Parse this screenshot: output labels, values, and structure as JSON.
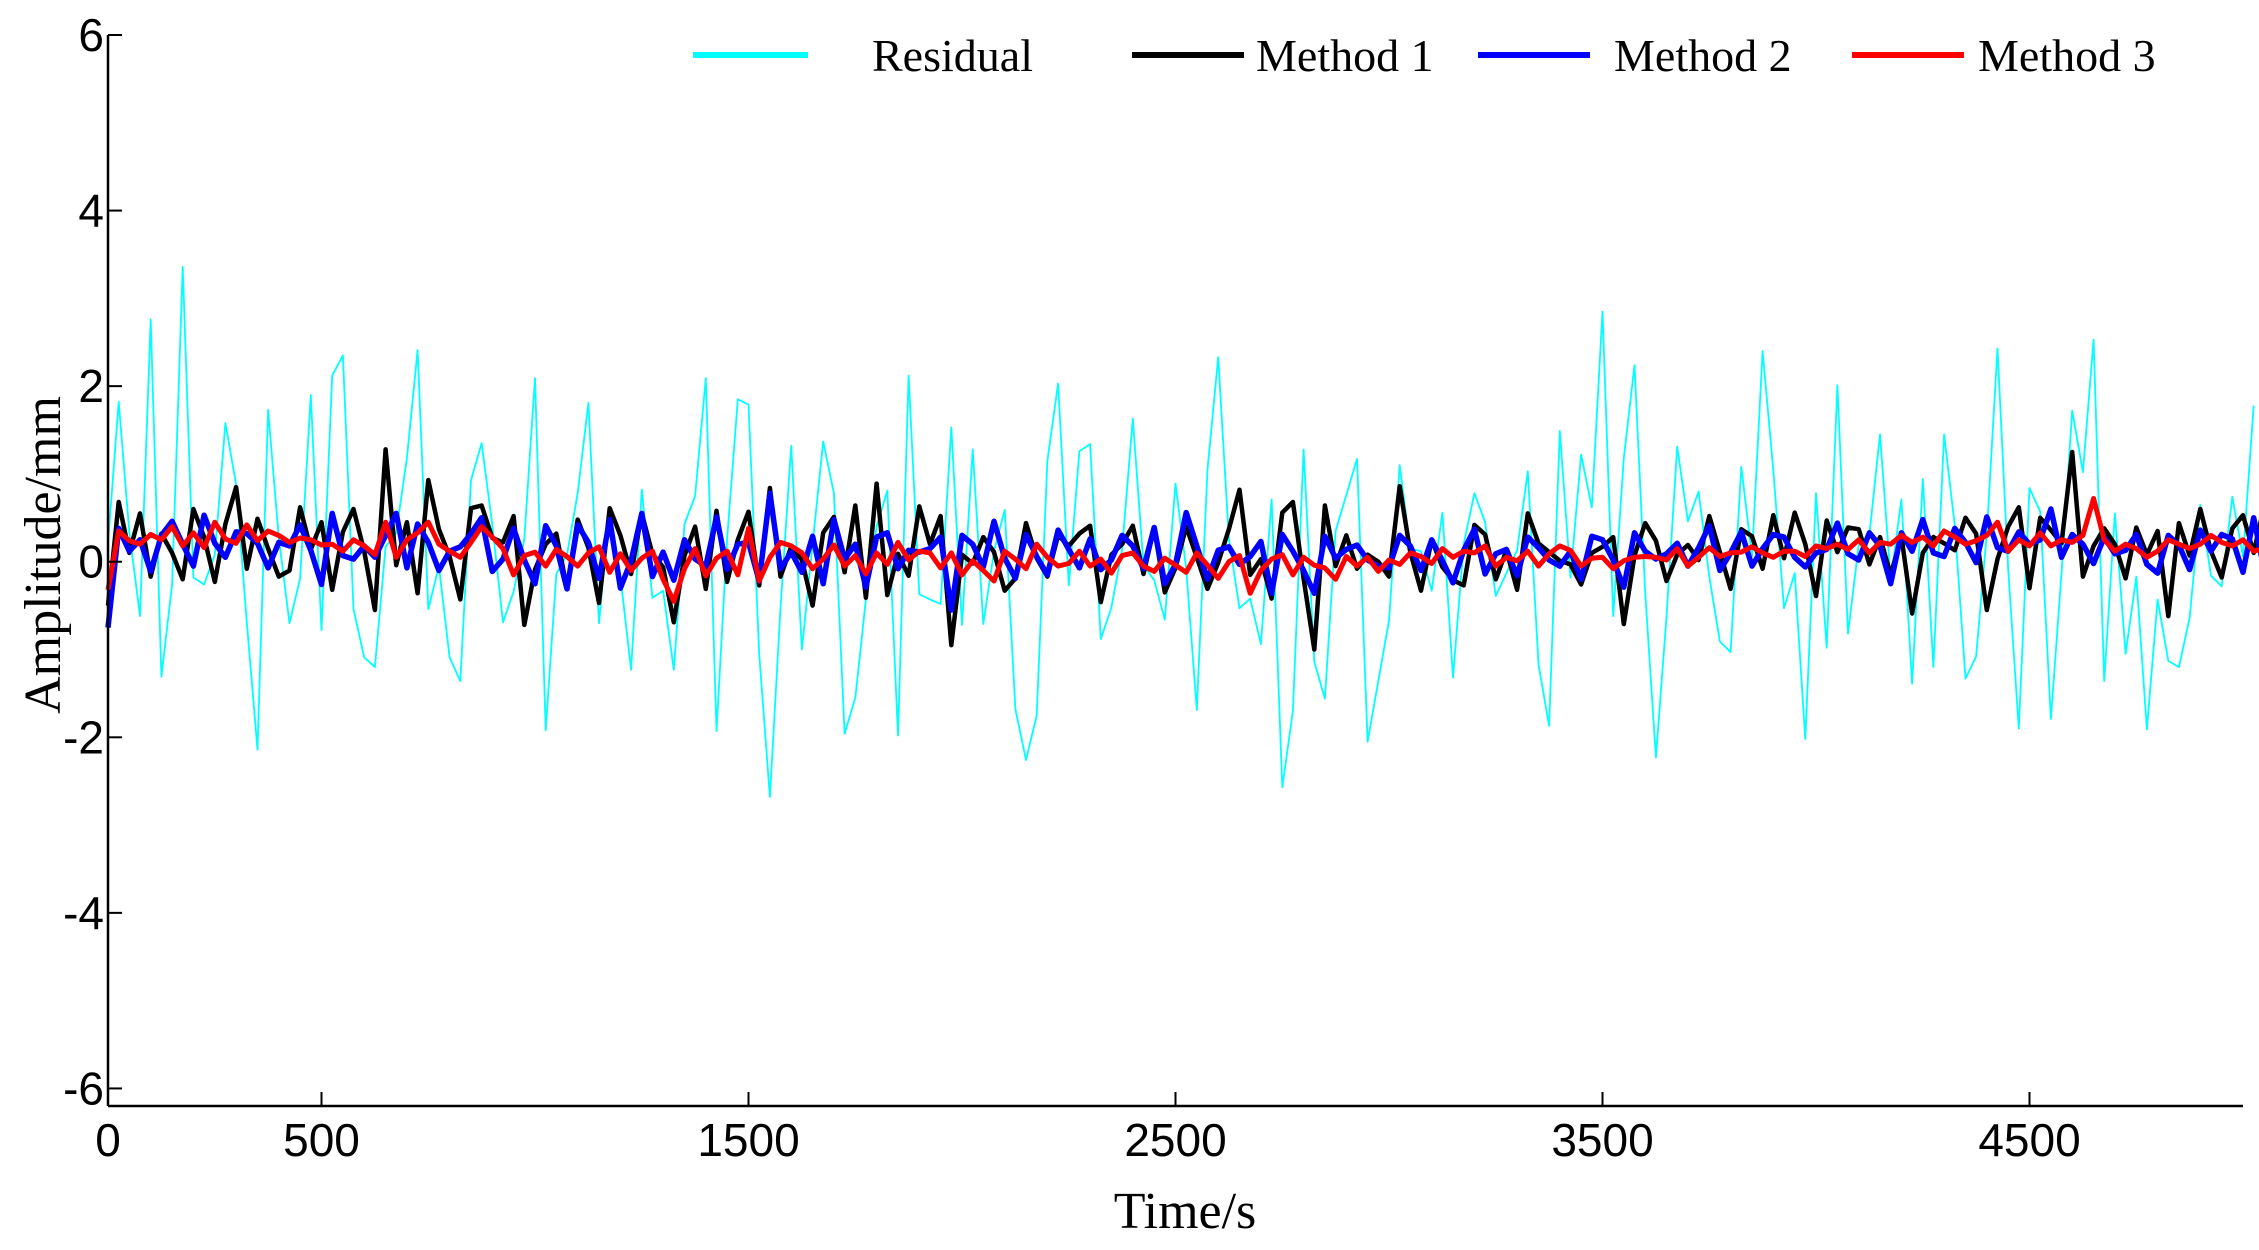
{
  "chart_data": {
    "type": "line",
    "title": "",
    "xlabel": "Time/s",
    "ylabel": "Amplitude/mm",
    "xlim": [
      0,
      5000
    ],
    "ylim": [
      -6.2,
      6
    ],
    "x_ticks": [
      0,
      500,
      1500,
      2500,
      3500,
      4500
    ],
    "y_ticks": [
      6,
      4,
      2,
      0,
      -2,
      -4,
      -6
    ],
    "grid": false,
    "legend_position": "top",
    "series": [
      {
        "name": "Residual",
        "color": "#00ffff",
        "x_step": 25,
        "values": [
          0.21,
          1.82,
          0.34,
          -0.62,
          2.76,
          -1.31,
          -0.26,
          3.36,
          -0.18,
          -0.26,
          0.08,
          1.58,
          0.88,
          -0.69,
          -2.14,
          1.73,
          0.27,
          -0.7,
          -0.19,
          1.9,
          -0.78,
          2.12,
          2.35,
          -0.54,
          -1.09,
          -1.2,
          0.17,
          0.33,
          1.18,
          2.41,
          -0.54,
          -0.05,
          -1.09,
          -1.36,
          0.93,
          1.35,
          0.42,
          -0.69,
          -0.34,
          0.26,
          2.09,
          -1.92,
          -0.14,
          0.08,
          0.78,
          1.81,
          -0.7,
          0.62,
          -0.17,
          -1.23,
          0.82,
          -0.41,
          -0.33,
          -1.23,
          0.43,
          0.75,
          2.09,
          -1.93,
          0.26,
          1.85,
          1.79,
          -1.05,
          -2.68,
          -0.53,
          1.32,
          -1.0,
          0.2,
          1.37,
          0.78,
          -1.96,
          -1.55,
          -0.43,
          0.4,
          0.81,
          -1.98,
          2.12,
          -0.37,
          -0.43,
          -0.48,
          1.53,
          -0.72,
          1.28,
          -0.71,
          0.12,
          0.59,
          -1.68,
          -2.26,
          -1.75,
          1.15,
          2.03,
          -0.27,
          1.26,
          1.34,
          -0.88,
          -0.52,
          0.14,
          1.63,
          -0.04,
          -0.21,
          -0.66,
          0.89,
          -0.08,
          -1.69,
          1.05,
          2.33,
          0.26,
          -0.53,
          -0.42,
          -0.94,
          0.71,
          -2.57,
          -1.7,
          1.28,
          -1.14,
          -1.56,
          0.35,
          0.76,
          1.17,
          -2.05,
          -1.36,
          -0.67,
          1.1,
          0.15,
          0.12,
          -0.33,
          0.56,
          -1.32,
          0.2,
          0.78,
          0.45,
          -0.39,
          -0.13,
          0.13,
          1.03,
          -1.17,
          -1.87,
          1.49,
          -0.18,
          1.22,
          0.62,
          2.85,
          -0.62,
          1.18,
          2.24,
          -0.35,
          -2.23,
          -0.63,
          1.31,
          0.46,
          0.8,
          -0.17,
          -0.91,
          -1.03,
          1.08,
          0.06,
          2.4,
          1.04,
          -0.53,
          -0.13,
          -2.02,
          0.78,
          -0.98,
          2.01,
          -0.82,
          0.19,
          0.31,
          1.45,
          -0.21,
          0.71,
          -1.39,
          0.94,
          -1.2,
          1.45,
          0.41,
          -1.33,
          -1.08,
          0.32,
          2.43,
          -0.09,
          -1.9,
          0.84,
          0.57,
          -1.79,
          -0.13,
          1.72,
          1.02,
          2.53,
          -1.36,
          0.55,
          -1.05,
          -0.17,
          -1.91,
          -0.43,
          -1.13,
          -1.2,
          -0.64,
          0.65,
          -0.16,
          -0.28,
          0.74,
          0.06,
          1.78
        ]
      },
      {
        "name": "Method 1",
        "color": "#000000",
        "x_step": 25,
        "values": [
          -0.5,
          0.68,
          0.1,
          0.55,
          -0.17,
          0.32,
          0.1,
          -0.2,
          0.6,
          0.28,
          -0.23,
          0.43,
          0.85,
          -0.08,
          0.49,
          0.15,
          -0.17,
          -0.1,
          0.62,
          0.14,
          0.45,
          -0.32,
          0.34,
          0.6,
          0.12,
          -0.55,
          1.28,
          -0.04,
          0.45,
          -0.36,
          0.93,
          0.37,
          0.06,
          -0.43,
          0.61,
          0.64,
          0.27,
          0.22,
          0.52,
          -0.72,
          -0.09,
          0.2,
          0.32,
          -0.31,
          0.48,
          0.16,
          -0.47,
          0.61,
          0.3,
          -0.14,
          0.55,
          0.09,
          -0.06,
          -0.69,
          0.07,
          0.4,
          -0.31,
          0.58,
          -0.23,
          0.25,
          0.57,
          -0.27,
          0.84,
          -0.17,
          0.17,
          0.02,
          -0.5,
          0.33,
          0.51,
          -0.12,
          0.64,
          -0.41,
          0.89,
          -0.38,
          0.09,
          -0.16,
          0.63,
          0.2,
          0.52,
          -0.95,
          0.08,
          -0.02,
          0.28,
          0.11,
          -0.33,
          -0.19,
          0.44,
          0.04,
          -0.17,
          0.3,
          0.18,
          0.32,
          0.41,
          -0.46,
          0.08,
          0.2,
          0.41,
          -0.14,
          0.39,
          -0.35,
          -0.07,
          0.4,
          0.05,
          -0.31,
          -0.01,
          0.37,
          0.82,
          -0.15,
          0.03,
          -0.42,
          0.56,
          0.68,
          -0.19,
          -1.0,
          0.64,
          -0.05,
          0.3,
          -0.08,
          0.08,
          0.0,
          -0.17,
          0.86,
          0.11,
          -0.33,
          0.25,
          -0.06,
          -0.21,
          -0.27,
          0.42,
          0.31,
          -0.2,
          0.13,
          -0.32,
          0.55,
          0.21,
          0.11,
          0.01,
          -0.03,
          -0.26,
          0.1,
          0.17,
          0.28,
          -0.71,
          0.07,
          0.44,
          0.24,
          -0.22,
          0.08,
          0.19,
          0.02,
          0.52,
          0.11,
          -0.31,
          0.37,
          0.29,
          -0.08,
          0.53,
          0.04,
          0.56,
          0.2,
          -0.39,
          0.47,
          0.11,
          0.39,
          0.37,
          -0.03,
          0.28,
          -0.15,
          0.29,
          -0.59,
          0.1,
          0.28,
          0.21,
          0.13,
          0.5,
          0.32,
          -0.55,
          0.03,
          0.4,
          0.62,
          -0.3,
          0.5,
          0.36,
          0.21,
          1.25,
          -0.17,
          0.18,
          0.38,
          0.2,
          -0.19,
          0.39,
          0.08,
          0.35,
          -0.62,
          0.44,
          0.07,
          0.6,
          0.12,
          -0.18,
          0.38,
          0.53,
          0.1,
          0.64,
          0.13
        ]
      },
      {
        "name": "Method 2",
        "color": "#0000ff",
        "x_step": 25,
        "values": [
          -0.75,
          0.38,
          0.12,
          0.25,
          -0.11,
          0.3,
          0.46,
          0.2,
          -0.05,
          0.53,
          0.21,
          0.05,
          0.34,
          0.32,
          0.21,
          -0.07,
          0.22,
          0.18,
          0.42,
          0.13,
          -0.26,
          0.55,
          0.07,
          0.03,
          0.18,
          0.05,
          0.3,
          0.55,
          -0.07,
          0.43,
          0.22,
          -0.1,
          0.12,
          0.17,
          0.32,
          0.5,
          -0.11,
          0.03,
          0.38,
          0.02,
          -0.25,
          0.41,
          0.18,
          -0.31,
          0.42,
          0.22,
          -0.19,
          0.48,
          -0.3,
          0.01,
          0.55,
          -0.17,
          0.11,
          -0.21,
          0.25,
          0.03,
          -0.05,
          0.51,
          -0.09,
          0.2,
          0.22,
          -0.22,
          0.78,
          -0.08,
          0.11,
          -0.12,
          0.29,
          -0.25,
          0.48,
          0.03,
          0.2,
          -0.29,
          0.28,
          0.33,
          -0.08,
          0.13,
          0.11,
          0.15,
          0.28,
          -0.55,
          0.3,
          0.2,
          -0.06,
          0.46,
          0.04,
          -0.19,
          0.31,
          0.06,
          -0.15,
          0.36,
          0.14,
          -0.07,
          0.26,
          -0.09,
          0.02,
          0.3,
          0.18,
          -0.08,
          0.39,
          -0.25,
          -0.03,
          0.56,
          0.18,
          -0.2,
          0.13,
          0.17,
          -0.03,
          0.06,
          0.23,
          -0.36,
          0.31,
          0.12,
          -0.1,
          -0.36,
          0.29,
          0.04,
          0.14,
          0.19,
          0.02,
          -0.05,
          -0.07,
          0.3,
          0.18,
          -0.1,
          0.25,
          0.01,
          -0.24,
          0.13,
          0.37,
          -0.14,
          0.09,
          0.14,
          -0.16,
          0.28,
          0.16,
          0.02,
          -0.05,
          0.12,
          -0.2,
          0.29,
          0.25,
          0.02,
          -0.29,
          0.33,
          0.12,
          0.03,
          0.09,
          0.21,
          -0.05,
          0.16,
          0.41,
          -0.1,
          0.1,
          0.34,
          -0.05,
          0.15,
          0.31,
          0.28,
          0.05,
          -0.06,
          0.1,
          0.14,
          0.44,
          0.09,
          0.02,
          0.33,
          0.18,
          -0.25,
          0.33,
          0.12,
          0.48,
          0.1,
          0.06,
          0.38,
          0.22,
          -0.01,
          0.51,
          0.16,
          0.12,
          0.34,
          0.2,
          0.25,
          0.6,
          0.05,
          0.31,
          0.2,
          -0.02,
          0.28,
          0.09,
          0.13,
          0.31,
          -0.03,
          -0.13,
          0.3,
          0.19,
          -0.09,
          0.36,
          0.12,
          0.31,
          0.26,
          -0.12,
          0.5,
          -0.1
        ]
      },
      {
        "name": "Method 3",
        "color": "#ff0000",
        "x_step": 25,
        "values": [
          -0.32,
          0.35,
          0.24,
          0.2,
          0.31,
          0.25,
          0.4,
          0.18,
          0.33,
          0.16,
          0.45,
          0.26,
          0.21,
          0.42,
          0.24,
          0.35,
          0.3,
          0.22,
          0.27,
          0.25,
          0.19,
          0.2,
          0.12,
          0.25,
          0.18,
          0.08,
          0.45,
          0.05,
          0.25,
          0.33,
          0.45,
          0.2,
          0.12,
          0.05,
          0.22,
          0.4,
          0.28,
          0.15,
          -0.15,
          0.07,
          0.11,
          -0.05,
          0.14,
          0.06,
          -0.05,
          0.1,
          0.17,
          -0.12,
          0.09,
          -0.1,
          0.04,
          0.12,
          -0.2,
          -0.45,
          -0.08,
          0.15,
          -0.16,
          0.04,
          0.12,
          -0.15,
          0.38,
          -0.22,
          0.05,
          0.22,
          0.18,
          0.1,
          -0.08,
          0.03,
          0.19,
          -0.05,
          0.07,
          -0.14,
          0.1,
          -0.03,
          0.22,
          0.02,
          0.12,
          0.1,
          -0.07,
          0.1,
          -0.15,
          0.01,
          -0.1,
          -0.22,
          0.12,
          0.03,
          -0.08,
          0.2,
          0.05,
          -0.05,
          -0.02,
          0.12,
          -0.05,
          0.03,
          -0.13,
          0.07,
          0.1,
          -0.05,
          -0.11,
          0.04,
          -0.04,
          -0.12,
          0.1,
          -0.04,
          -0.19,
          0.0,
          0.07,
          -0.36,
          -0.1,
          0.03,
          0.08,
          -0.15,
          0.05,
          -0.04,
          -0.07,
          -0.2,
          0.06,
          -0.05,
          0.05,
          -0.11,
          0.02,
          -0.03,
          0.1,
          0.06,
          -0.02,
          0.15,
          0.05,
          0.12,
          0.1,
          0.18,
          -0.05,
          0.05,
          0.01,
          0.12,
          -0.05,
          0.09,
          0.18,
          0.13,
          -0.05,
          0.04,
          0.05,
          -0.08,
          0.01,
          0.05,
          0.06,
          0.05,
          0.02,
          0.15,
          -0.05,
          0.05,
          0.16,
          0.06,
          0.1,
          0.11,
          0.17,
          0.1,
          0.05,
          0.12,
          0.12,
          0.06,
          0.18,
          0.15,
          0.2,
          0.14,
          0.25,
          0.1,
          0.22,
          0.2,
          0.3,
          0.22,
          0.28,
          0.18,
          0.35,
          0.28,
          0.2,
          0.24,
          0.3,
          0.45,
          0.12,
          0.25,
          0.18,
          0.33,
          0.18,
          0.25,
          0.22,
          0.3,
          0.72,
          0.25,
          0.12,
          0.2,
          0.15,
          0.05,
          0.12,
          0.25,
          0.2,
          0.15,
          0.2,
          0.3,
          0.22,
          0.18,
          0.25,
          0.12,
          0.15,
          0.34,
          0.22,
          0.3,
          0.42
        ]
      }
    ]
  }
}
